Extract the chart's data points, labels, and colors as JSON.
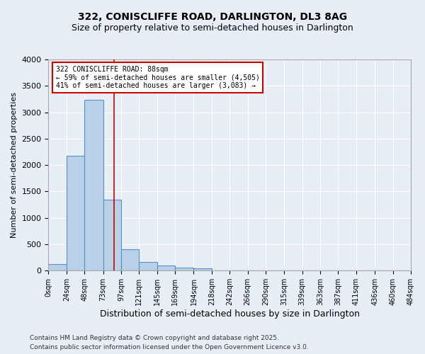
{
  "title": "322, CONISCLIFFE ROAD, DARLINGTON, DL3 8AG",
  "subtitle": "Size of property relative to semi-detached houses in Darlington",
  "xlabel": "Distribution of semi-detached houses by size in Darlington",
  "ylabel": "Number of semi-detached properties",
  "footer_line1": "Contains HM Land Registry data © Crown copyright and database right 2025.",
  "footer_line2": "Contains public sector information licensed under the Open Government Licence v3.0.",
  "annotation_title": "322 CONISCLIFFE ROAD: 88sqm",
  "annotation_line2": "← 59% of semi-detached houses are smaller (4,505)",
  "annotation_line3": "41% of semi-detached houses are larger (3,083) →",
  "property_size": 88,
  "bin_edges": [
    0,
    24,
    48,
    73,
    97,
    121,
    145,
    169,
    194,
    218,
    242,
    266,
    290,
    315,
    339,
    363,
    387,
    411,
    436,
    460,
    484
  ],
  "bin_labels": [
    "0sqm",
    "24sqm",
    "48sqm",
    "73sqm",
    "97sqm",
    "121sqm",
    "145sqm",
    "169sqm",
    "194sqm",
    "218sqm",
    "242sqm",
    "266sqm",
    "290sqm",
    "315sqm",
    "339sqm",
    "363sqm",
    "387sqm",
    "411sqm",
    "436sqm",
    "460sqm",
    "484sqm"
  ],
  "counts": [
    120,
    2170,
    3230,
    1350,
    410,
    170,
    100,
    60,
    45,
    0,
    0,
    0,
    0,
    0,
    0,
    0,
    0,
    0,
    0,
    0
  ],
  "bar_color": "#b8d0e8",
  "bar_edge_color": "#5a8fc0",
  "vline_color": "#cc0000",
  "vline_x": 88,
  "annotation_box_color": "#ffffff",
  "annotation_box_edge": "#cc0000",
  "ylim": [
    0,
    4000
  ],
  "yticks": [
    0,
    500,
    1000,
    1500,
    2000,
    2500,
    3000,
    3500,
    4000
  ],
  "bg_color": "#e8eef5",
  "grid_color": "#ffffff",
  "title_fontsize": 10,
  "subtitle_fontsize": 9
}
